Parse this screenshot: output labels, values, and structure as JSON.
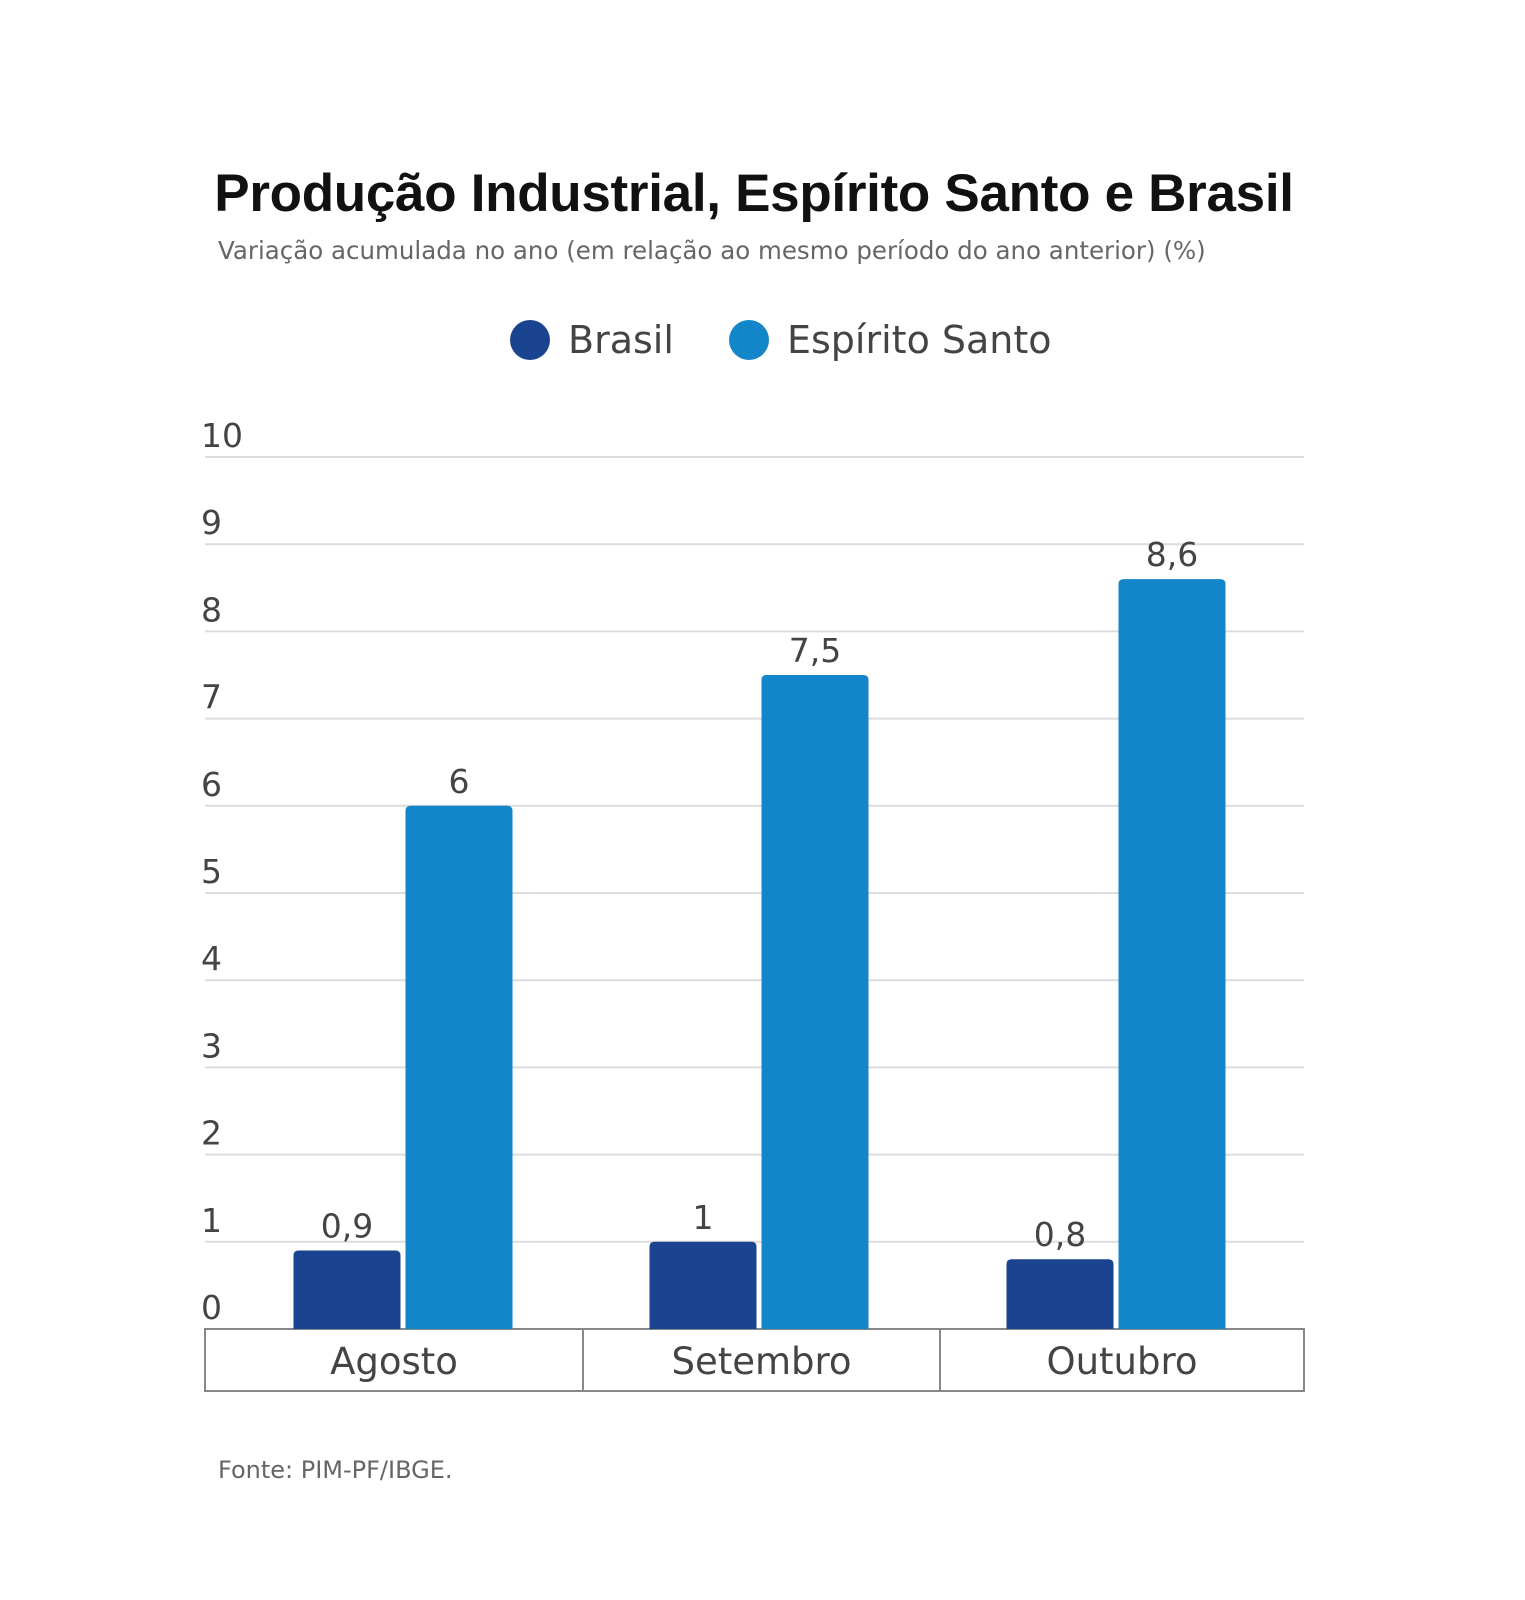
{
  "chart_data": {
    "type": "bar",
    "title": "Produção Industrial, Espírito Santo e Brasil",
    "subtitle": "Variação acumulada no ano (em relação ao mesmo período do ano anterior) (%)",
    "categories": [
      "Agosto",
      "Setembro",
      "Outubro"
    ],
    "series": [
      {
        "name": "Brasil",
        "color": "#1a4390",
        "values": [
          0.9,
          1,
          0.8
        ],
        "labels": [
          "0,9",
          "1",
          "0,8"
        ]
      },
      {
        "name": "Espírito Santo",
        "color": "#1386c9",
        "values": [
          6,
          7.5,
          8.6
        ],
        "labels": [
          "6",
          "7,5",
          "8,6"
        ]
      }
    ],
    "ylim": [
      0,
      10
    ],
    "yticks": [
      "0",
      "1",
      "2",
      "3",
      "4",
      "5",
      "6",
      "7",
      "8",
      "9",
      "10"
    ],
    "grid": true,
    "legend_position": "top-center",
    "source": "Fonte: PIM-PF/IBGE."
  }
}
